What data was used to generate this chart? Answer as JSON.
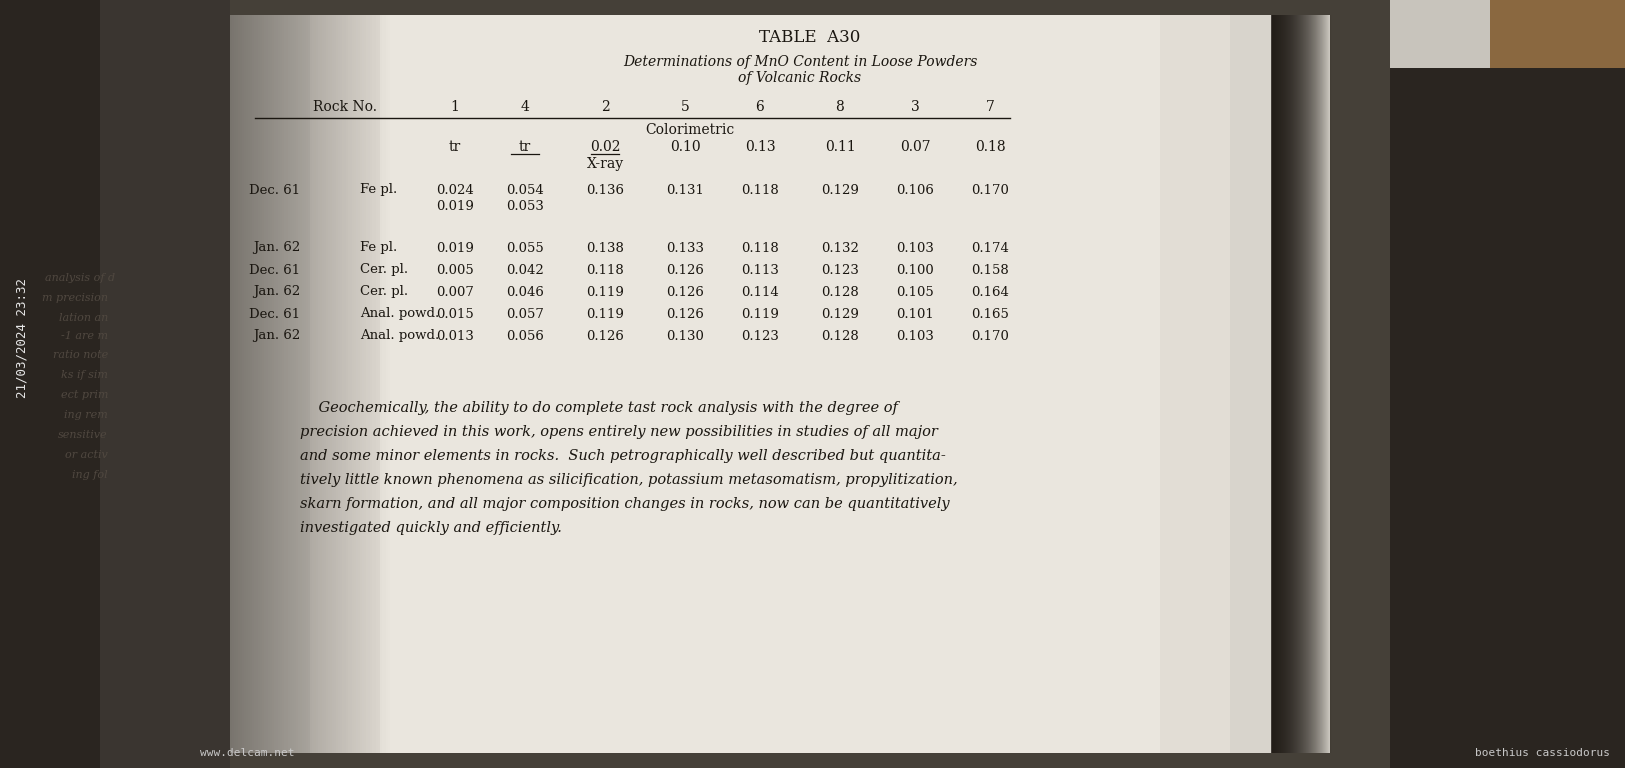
{
  "title": "TABLE  A30",
  "subtitle1": "Determinations of MnO Content in Loose Powders",
  "subtitle2": "of Volcanic Rocks",
  "watermark_date": "21/03/2024 23:32",
  "watermark_url": "www.delcam.net",
  "watermark_bottom": "boethius cassiodorus",
  "rock_no_label": "Rock No.",
  "col_headers": [
    "1",
    "4",
    "2",
    "5",
    "6",
    "8",
    "3",
    "7"
  ],
  "colorimetric_label": "Colorimetric",
  "colorimetric_values": [
    "tr",
    "tr",
    "0.02",
    "0.10",
    "0.13",
    "0.11",
    "0.07",
    "0.18"
  ],
  "colorimetric_underline": [
    false,
    true,
    true,
    false,
    false,
    false,
    false,
    false
  ],
  "xray_label": "X-ray",
  "rows": [
    {
      "date": "Dec. 61",
      "type": "Fe pl.",
      "subrows": [
        [
          "0.024",
          "0.054",
          "0.136",
          "0.131",
          "0.118",
          "0.129",
          "0.106",
          "0.170"
        ],
        [
          "0.019",
          "0.053",
          "",
          "",
          "",
          "",
          "",
          ""
        ]
      ]
    },
    {
      "date": "Jan. 62",
      "type": "Fe pl.",
      "subrows": [
        [
          "0.019",
          "0.055",
          "0.138",
          "0.133",
          "0.118",
          "0.132",
          "0.103",
          "0.174"
        ]
      ]
    },
    {
      "date": "Dec. 61",
      "type": "Cer. pl.",
      "subrows": [
        [
          "0.005",
          "0.042",
          "0.118",
          "0.126",
          "0.113",
          "0.123",
          "0.100",
          "0.158"
        ]
      ]
    },
    {
      "date": "Jan. 62",
      "type": "Cer. pl.",
      "subrows": [
        [
          "0.007",
          "0.046",
          "0.119",
          "0.126",
          "0.114",
          "0.128",
          "0.105",
          "0.164"
        ]
      ]
    },
    {
      "date": "Dec. 61",
      "type": "Anal. powd.",
      "subrows": [
        [
          "0.015",
          "0.057",
          "0.119",
          "0.126",
          "0.119",
          "0.129",
          "0.101",
          "0.165"
        ]
      ]
    },
    {
      "date": "Jan. 62",
      "type": "Anal. powd.",
      "subrows": [
        [
          "0.013",
          "0.056",
          "0.126",
          "0.130",
          "0.123",
          "0.128",
          "0.103",
          "0.170"
        ]
      ]
    }
  ],
  "para_lines": [
    "    Geochemically, the ability to do complete tast rock analysis with the degree of",
    "precision achieved in this work, opens entirely new possibilities in studies of all major",
    "and some minor elements in rocks.  Such petrographically well described but quantita-",
    "tively little known phenomena as silicification, potassium metasomatism, propylitization,",
    "skarn formation, and all major composition changes in rocks, now can be quantitatively",
    "investigated quickly and efficiently."
  ]
}
